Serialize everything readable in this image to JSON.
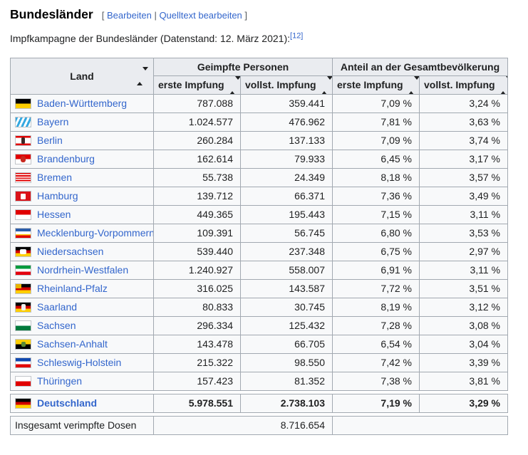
{
  "page": {
    "title": "Bundesländer",
    "edit": {
      "open_bracket": "[ ",
      "bearbeiten": "Bearbeiten",
      "separator": " | ",
      "quelltext": "Quelltext bearbeiten",
      "close_bracket": " ]"
    },
    "subtitle": "Impfkampagne der Bundesländer (Datenstand: 12. März 2021):",
    "reference": "[12]"
  },
  "colors": {
    "link_blue": "#3366cc",
    "table_border": "#a2a9b1",
    "header_bg": "#eaecf0",
    "cell_bg": "#f8f9fa"
  },
  "table": {
    "headers": {
      "land": "Land",
      "group_vaccinated": "Geimpfte Personen",
      "group_share": "Anteil an der Gesamtbevölkerung",
      "sub": [
        "erste Impfung",
        "vollst. Impfung",
        "erste Impfung",
        "vollst. Impfung"
      ]
    },
    "rows": [
      {
        "land": "Baden-Württemberg",
        "flag": {
          "stripes": [
            [
              "#000000",
              50
            ],
            [
              "#ffcf00",
              50
            ]
          ]
        },
        "values": [
          "787.088",
          "359.441",
          "7,09 %",
          "3,24 %"
        ]
      },
      {
        "land": "Bayern",
        "flag": {
          "pattern": "lozenges"
        },
        "values": [
          "1.024.577",
          "476.962",
          "7,81 %",
          "3,63 %"
        ]
      },
      {
        "land": "Berlin",
        "flag": {
          "stripes": [
            [
              "#e10000",
              19
            ],
            [
              "#ffffff",
              62
            ],
            [
              "#e10000",
              19
            ]
          ],
          "emblem": {
            "c": "#3a2a28",
            "x": 8,
            "y": 2,
            "w": 5,
            "h": 9,
            "r": 2
          }
        },
        "values": [
          "260.284",
          "137.133",
          "7,09 %",
          "3,74 %"
        ]
      },
      {
        "land": "Brandenburg",
        "flag": {
          "stripes": [
            [
              "#e10000",
              50
            ],
            [
              "#ffffff",
              50
            ]
          ],
          "emblem": {
            "c": "#c8281e",
            "x": 7,
            "y": 2,
            "w": 7,
            "h": 9,
            "r": 3
          }
        },
        "values": [
          "162.614",
          "79.933",
          "6,45 %",
          "3,17 %"
        ]
      },
      {
        "land": "Bremen",
        "flag": {
          "stripes": [
            [
              "#e10000",
              12.5
            ],
            [
              "#ffffff",
              12.5
            ],
            [
              "#e10000",
              12.5
            ],
            [
              "#ffffff",
              12.5
            ],
            [
              "#e10000",
              12.5
            ],
            [
              "#ffffff",
              12.5
            ],
            [
              "#e10000",
              12.5
            ],
            [
              "#ffffff",
              12.5
            ]
          ]
        },
        "values": [
          "55.738",
          "24.349",
          "8,18 %",
          "3,57 %"
        ]
      },
      {
        "land": "Hamburg",
        "flag": {
          "stripes": [
            [
              "#da1219",
              100
            ]
          ],
          "emblem": {
            "c": "#ffffff",
            "x": 7,
            "y": 3,
            "w": 7,
            "h": 8,
            "r": 1
          }
        },
        "values": [
          "139.712",
          "66.371",
          "7,36 %",
          "3,49 %"
        ]
      },
      {
        "land": "Hessen",
        "flag": {
          "stripes": [
            [
              "#e10000",
              50
            ],
            [
              "#ffffff",
              50
            ]
          ]
        },
        "values": [
          "449.365",
          "195.443",
          "7,15 %",
          "3,11 %"
        ]
      },
      {
        "land": "Mecklenburg-Vorpommern",
        "flag": {
          "stripes": [
            [
              "#2a5caa",
              32
            ],
            [
              "#ffffff",
              28
            ],
            [
              "#ffc800",
              14
            ],
            [
              "#e10000",
              26
            ]
          ]
        },
        "values": [
          "109.391",
          "56.745",
          "6,80 %",
          "3,53 %"
        ]
      },
      {
        "land": "Niedersachsen",
        "flag": {
          "stripes": [
            [
              "#000000",
              33.4
            ],
            [
              "#d00000",
              33.3
            ],
            [
              "#ffcf00",
              33.3
            ]
          ],
          "emblem": {
            "c": "#ffffff",
            "x": 6,
            "y": 3,
            "w": 9,
            "h": 7,
            "r": 2
          }
        },
        "values": [
          "539.440",
          "237.348",
          "6,75 %",
          "2,97 %"
        ]
      },
      {
        "land": "Nordrhein-Westfalen",
        "flag": {
          "stripes": [
            [
              "#009a3d",
              33.4
            ],
            [
              "#ffffff",
              33.3
            ],
            [
              "#e3000f",
              33.3
            ]
          ]
        },
        "values": [
          "1.240.927",
          "558.007",
          "6,91 %",
          "3,11 %"
        ]
      },
      {
        "land": "Rheinland-Pfalz",
        "flag": {
          "stripes": [
            [
              "#000000",
              33.4
            ],
            [
              "#d00000",
              33.3
            ],
            [
              "#ffcf00",
              33.3
            ]
          ],
          "emblem": {
            "c": "#e8b400",
            "x": 0,
            "y": 0,
            "w": 8,
            "h": 6,
            "r": 0
          }
        },
        "values": [
          "316.025",
          "143.587",
          "7,72 %",
          "3,51 %"
        ]
      },
      {
        "land": "Saarland",
        "flag": {
          "stripes": [
            [
              "#000000",
              33.4
            ],
            [
              "#d00000",
              33.3
            ],
            [
              "#ffcf00",
              33.3
            ]
          ],
          "emblem": {
            "c": "#efefef",
            "x": 8,
            "y": 2,
            "w": 6,
            "h": 9,
            "r": 2
          }
        },
        "values": [
          "80.833",
          "30.745",
          "8,19 %",
          "3,12 %"
        ]
      },
      {
        "land": "Sachsen",
        "flag": {
          "stripes": [
            [
              "#ffffff",
              50
            ],
            [
              "#007a3c",
              50
            ]
          ]
        },
        "values": [
          "296.334",
          "125.432",
          "7,28 %",
          "3,08 %"
        ]
      },
      {
        "land": "Sachsen-Anhalt",
        "flag": {
          "stripes": [
            [
              "#ffcf00",
              50
            ],
            [
              "#000000",
              50
            ]
          ],
          "emblem": {
            "c": "#5a8a34",
            "x": 8,
            "y": 3,
            "w": 6,
            "h": 7,
            "r": 2
          }
        },
        "values": [
          "143.478",
          "66.705",
          "6,54 %",
          "3,04 %"
        ]
      },
      {
        "land": "Schleswig-Holstein",
        "flag": {
          "stripes": [
            [
              "#0f47af",
              33.4
            ],
            [
              "#ffffff",
              33.3
            ],
            [
              "#e10000",
              33.3
            ]
          ]
        },
        "values": [
          "215.322",
          "98.550",
          "7,42 %",
          "3,39 %"
        ]
      },
      {
        "land": "Thüringen",
        "flag": {
          "stripes": [
            [
              "#ffffff",
              50
            ],
            [
              "#e10000",
              50
            ]
          ]
        },
        "values": [
          "157.423",
          "81.352",
          "7,38 %",
          "3,81 %"
        ]
      }
    ],
    "total_row": {
      "land": "Deutschland",
      "flag": {
        "stripes": [
          [
            "#000000",
            33.4
          ],
          [
            "#d00000",
            33.3
          ],
          [
            "#ffcf00",
            33.3
          ]
        ]
      },
      "values": [
        "5.978.551",
        "2.738.103",
        "7,19 %",
        "3,29 %"
      ]
    },
    "doses_row": {
      "label": "Insgesamt verimpfte Dosen",
      "value": "8.716.654"
    }
  }
}
